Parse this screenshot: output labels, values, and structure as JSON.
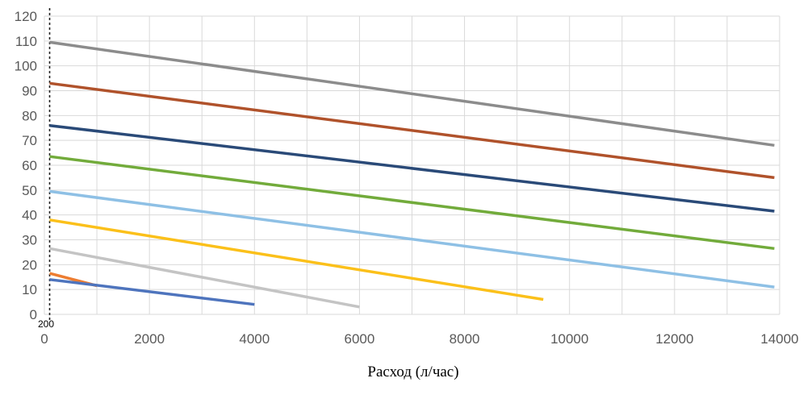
{
  "chart_data": {
    "type": "line",
    "title": "",
    "xlabel": "Расход (л/час)",
    "ylabel": "",
    "xlim": [
      0,
      14000
    ],
    "ylim": [
      0,
      120
    ],
    "xticks": [
      0,
      2000,
      4000,
      6000,
      8000,
      10000,
      12000,
      14000
    ],
    "yticks": [
      0,
      10,
      20,
      30,
      40,
      50,
      60,
      70,
      80,
      90,
      100,
      110,
      120
    ],
    "x_gridlines": [
      0,
      1000,
      2000,
      3000,
      4000,
      5000,
      6000,
      7000,
      8000,
      9000,
      10000,
      11000,
      12000,
      13000,
      14000
    ],
    "grid": true,
    "legend": "none",
    "reference_line": {
      "x": 100,
      "style": "dotted",
      "label": "200"
    },
    "series": [
      {
        "color": "#8c8c8c",
        "points": [
          [
            100,
            109.5
          ],
          [
            13900,
            68
          ]
        ]
      },
      {
        "color": "#b0522b",
        "points": [
          [
            100,
            93
          ],
          [
            13900,
            55
          ]
        ]
      },
      {
        "color": "#2a4a78",
        "points": [
          [
            100,
            76
          ],
          [
            13900,
            41.5
          ]
        ]
      },
      {
        "color": "#72ab3b",
        "points": [
          [
            100,
            63.5
          ],
          [
            13900,
            26.5
          ]
        ]
      },
      {
        "color": "#8ec0e5",
        "points": [
          [
            100,
            49.5
          ],
          [
            13900,
            11
          ]
        ]
      },
      {
        "color": "#fbc01a",
        "points": [
          [
            100,
            38
          ],
          [
            9500,
            6
          ]
        ]
      },
      {
        "color": "#c4c4c4",
        "points": [
          [
            100,
            26.5
          ],
          [
            6000,
            3
          ]
        ]
      },
      {
        "color": "#ed7d31",
        "points": [
          [
            100,
            16.5
          ],
          [
            1000,
            11.5
          ]
        ]
      },
      {
        "color": "#4e74bd",
        "points": [
          [
            100,
            14
          ],
          [
            4000,
            4
          ]
        ]
      }
    ]
  }
}
